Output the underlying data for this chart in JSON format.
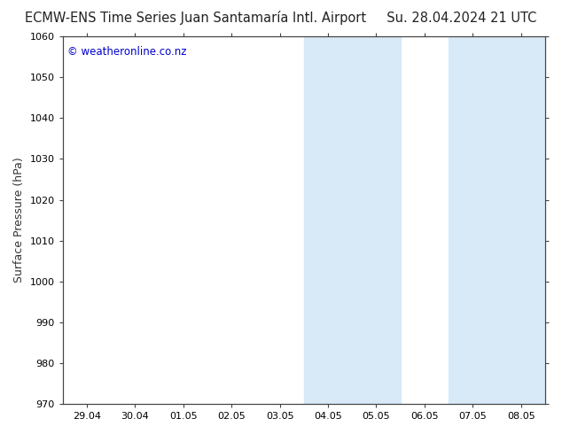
{
  "title_left": "ECMW-ENS Time Series Juan Santamaría Intl. Airport",
  "title_right": "Su. 28.04.2024 21 UTC",
  "ylabel": "Surface Pressure (hPa)",
  "watermark": "© weatheronline.co.nz",
  "watermark_color": "#0000cc",
  "ylim": [
    970,
    1060
  ],
  "yticks": [
    970,
    980,
    990,
    1000,
    1010,
    1020,
    1030,
    1040,
    1050,
    1060
  ],
  "xtick_labels": [
    "29.04",
    "30.04",
    "01.05",
    "02.05",
    "03.05",
    "04.05",
    "05.05",
    "06.05",
    "07.05",
    "08.05"
  ],
  "background_color": "#ffffff",
  "plot_bg_color": "#ffffff",
  "shaded_bands": [
    {
      "xstart": 4.5,
      "xend": 5.5,
      "color": "#d8eaf8"
    },
    {
      "xstart": 5.5,
      "xend": 6.5,
      "color": "#d8eaf8"
    },
    {
      "xstart": 7.5,
      "xend": 8.5,
      "color": "#d8eaf8"
    },
    {
      "xstart": 8.5,
      "xend": 9.5,
      "color": "#d8eaf8"
    }
  ],
  "title_fontsize": 10.5,
  "tick_fontsize": 8,
  "ylabel_fontsize": 9,
  "watermark_fontsize": 8.5,
  "grid_color": "#cccccc",
  "border_color": "#444444",
  "tick_color": "#444444"
}
